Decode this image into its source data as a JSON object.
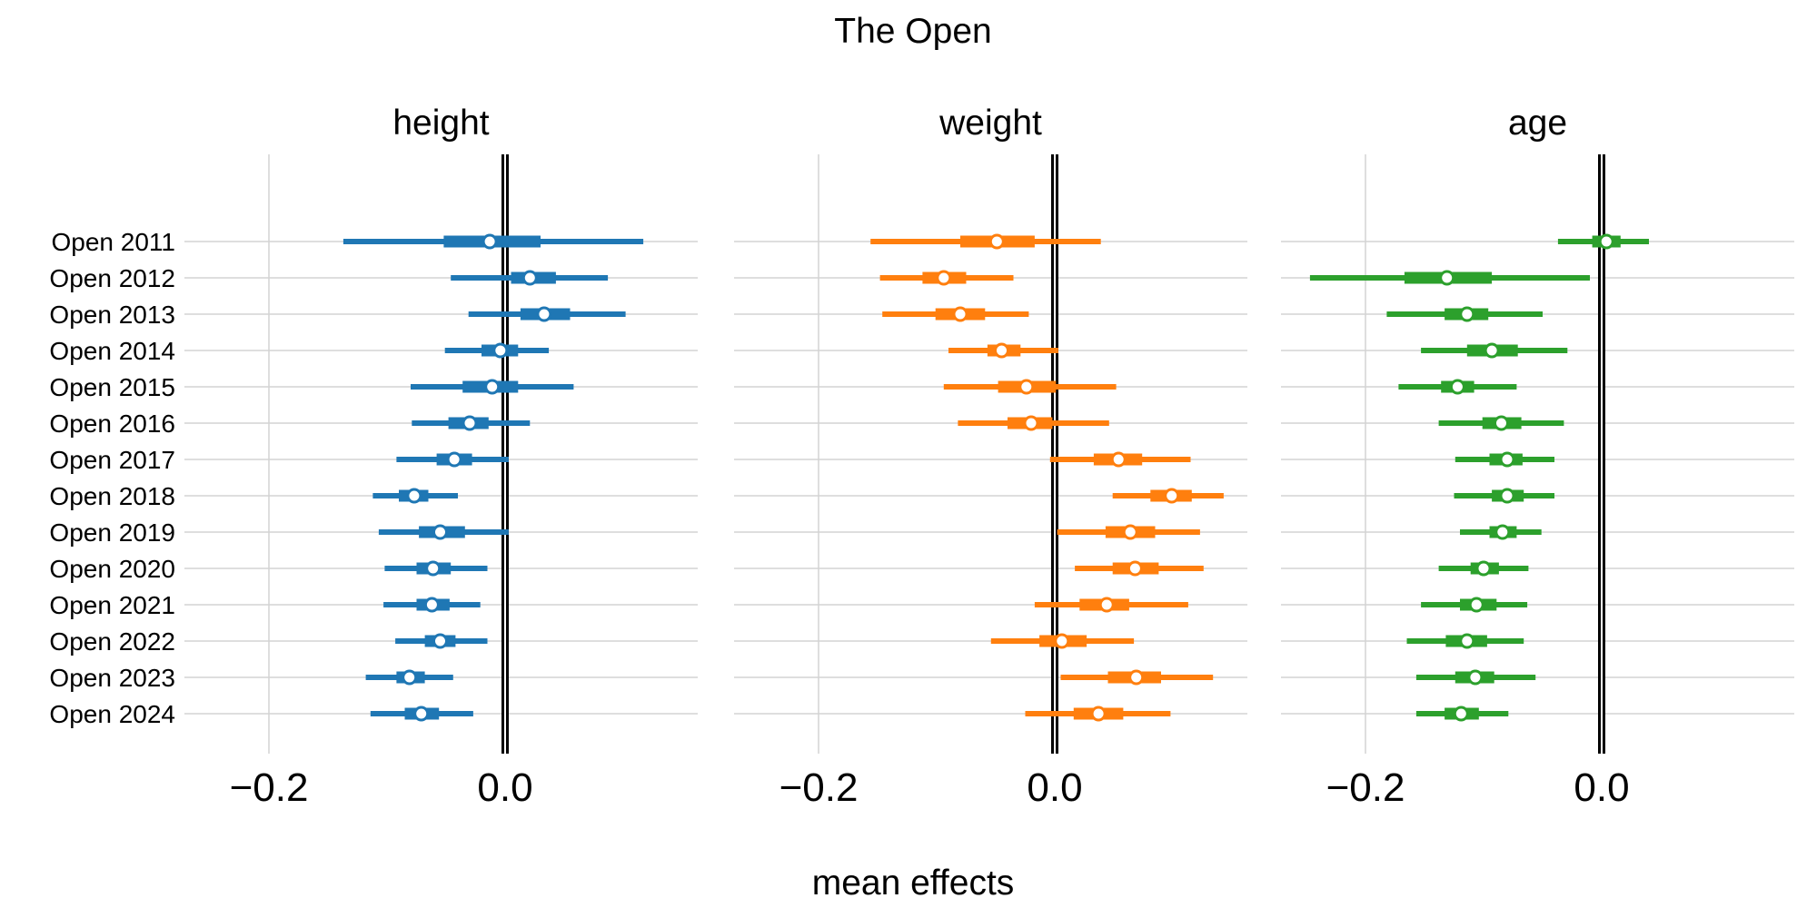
{
  "chart_data": {
    "type": "forest",
    "title": "The Open",
    "xlabel": "mean effects",
    "xlim": [
      -0.2,
      0.0
    ],
    "xticks": [
      -0.2,
      0.0
    ],
    "xtick_labels": [
      "−0.2",
      "0.0"
    ],
    "reference_line": 0.0,
    "grid": true,
    "categories": [
      "Open 2011",
      "Open 2012",
      "Open 2013",
      "Open 2014",
      "Open 2015",
      "Open 2016",
      "Open 2017",
      "Open 2018",
      "Open 2019",
      "Open 2020",
      "Open 2021",
      "Open 2022",
      "Open 2023",
      "Open 2024"
    ],
    "panels": [
      {
        "name": "height",
        "color": "#1f77b4",
        "mean": [
          -0.013,
          0.021,
          0.033,
          -0.004,
          -0.011,
          -0.03,
          -0.043,
          -0.077,
          -0.055,
          -0.061,
          -0.062,
          -0.055,
          -0.081,
          -0.071
        ],
        "inner": [
          [
            -0.052,
            0.03
          ],
          [
            0.005,
            0.043
          ],
          [
            0.013,
            0.055
          ],
          [
            -0.02,
            0.011
          ],
          [
            -0.036,
            0.011
          ],
          [
            -0.048,
            -0.014
          ],
          [
            -0.058,
            -0.028
          ],
          [
            -0.09,
            -0.065
          ],
          [
            -0.073,
            -0.034
          ],
          [
            -0.075,
            -0.046
          ],
          [
            -0.075,
            -0.047
          ],
          [
            -0.068,
            -0.042
          ],
          [
            -0.092,
            -0.068
          ],
          [
            -0.085,
            -0.056
          ]
        ],
        "outer": [
          [
            -0.137,
            0.117
          ],
          [
            -0.046,
            0.087
          ],
          [
            -0.031,
            0.102
          ],
          [
            -0.051,
            0.037
          ],
          [
            -0.08,
            0.058
          ],
          [
            -0.079,
            0.021
          ],
          [
            -0.092,
            0.003
          ],
          [
            -0.112,
            -0.04
          ],
          [
            -0.107,
            0.003
          ],
          [
            -0.102,
            -0.015
          ],
          [
            -0.103,
            -0.021
          ],
          [
            -0.093,
            -0.015
          ],
          [
            -0.118,
            -0.044
          ],
          [
            -0.114,
            -0.027
          ]
        ]
      },
      {
        "name": "weight",
        "color": "#ff7f0e",
        "mean": [
          -0.049,
          -0.094,
          -0.08,
          -0.045,
          -0.024,
          -0.02,
          0.054,
          0.099,
          0.064,
          0.068,
          0.044,
          0.006,
          0.069,
          0.037
        ],
        "inner": [
          [
            -0.08,
            -0.017
          ],
          [
            -0.112,
            -0.075
          ],
          [
            -0.101,
            -0.059
          ],
          [
            -0.057,
            -0.029
          ],
          [
            -0.048,
            0.001
          ],
          [
            -0.04,
            -0.002
          ],
          [
            0.033,
            0.074
          ],
          [
            0.081,
            0.116
          ],
          [
            0.043,
            0.085
          ],
          [
            0.049,
            0.088
          ],
          [
            0.021,
            0.063
          ],
          [
            -0.013,
            0.027
          ],
          [
            0.045,
            0.09
          ],
          [
            0.016,
            0.058
          ]
        ],
        "outer": [
          [
            -0.156,
            0.039
          ],
          [
            -0.148,
            -0.035
          ],
          [
            -0.146,
            -0.022
          ],
          [
            -0.09,
            0.003
          ],
          [
            -0.094,
            0.052
          ],
          [
            -0.082,
            0.046
          ],
          [
            -0.004,
            0.115
          ],
          [
            0.049,
            0.143
          ],
          [
            0.002,
            0.123
          ],
          [
            0.017,
            0.126
          ],
          [
            -0.017,
            0.113
          ],
          [
            -0.054,
            0.067
          ],
          [
            0.005,
            0.134
          ],
          [
            -0.025,
            0.098
          ]
        ]
      },
      {
        "name": "age",
        "color": "#2ca02c",
        "mean": [
          0.004,
          -0.131,
          -0.114,
          -0.093,
          -0.122,
          -0.085,
          -0.08,
          -0.08,
          -0.084,
          -0.1,
          -0.106,
          -0.114,
          -0.107,
          -0.119
        ],
        "inner": [
          [
            -0.008,
            0.016
          ],
          [
            -0.167,
            -0.093
          ],
          [
            -0.133,
            -0.096
          ],
          [
            -0.114,
            -0.071
          ],
          [
            -0.136,
            -0.108
          ],
          [
            -0.101,
            -0.068
          ],
          [
            -0.095,
            -0.067
          ],
          [
            -0.093,
            -0.066
          ],
          [
            -0.095,
            -0.072
          ],
          [
            -0.111,
            -0.087
          ],
          [
            -0.12,
            -0.089
          ],
          [
            -0.132,
            -0.097
          ],
          [
            -0.124,
            -0.091
          ],
          [
            -0.133,
            -0.104
          ]
        ],
        "outer": [
          [
            -0.037,
            0.04
          ],
          [
            -0.247,
            -0.01
          ],
          [
            -0.182,
            -0.05
          ],
          [
            -0.153,
            -0.029
          ],
          [
            -0.172,
            -0.072
          ],
          [
            -0.138,
            -0.032
          ],
          [
            -0.124,
            -0.04
          ],
          [
            -0.125,
            -0.04
          ],
          [
            -0.12,
            -0.051
          ],
          [
            -0.138,
            -0.062
          ],
          [
            -0.153,
            -0.063
          ],
          [
            -0.165,
            -0.066
          ],
          [
            -0.157,
            -0.056
          ],
          [
            -0.157,
            -0.079
          ]
        ]
      }
    ]
  }
}
